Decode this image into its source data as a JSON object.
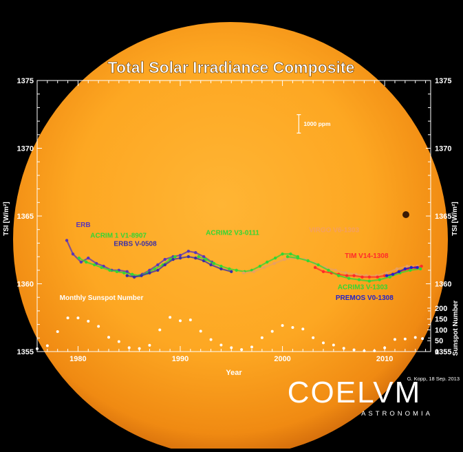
{
  "chart_data": {
    "type": "scatter",
    "title": "Total Solar Irradiance Composite",
    "xlabel": "Year",
    "ylabel_left": "TSI  [W/m²]",
    "ylabel_right": "TSI  [W/m²]",
    "ylabel_sunspot": "Sunspot Number",
    "xlim": [
      1976,
      2014.5
    ],
    "ylim": [
      1355,
      1375
    ],
    "xticks": [
      1980,
      1990,
      2000,
      2010
    ],
    "yticks": [
      1355,
      1360,
      1365,
      1370,
      1375
    ],
    "sunspot_ticks": [
      0,
      50,
      100,
      150,
      200
    ],
    "sunspot_scale_top": 200,
    "sunspot_axis_ylim": [
      1355,
      1358.2
    ],
    "scale_bar_label": "1000 ppm",
    "scale_bar_value": 1.361,
    "credit": "G. Kopp, 18 Sep. 2013",
    "grid": false,
    "series": [
      {
        "name": "ERB",
        "color": "#5a35b8",
        "x": [
          1978.9,
          1979.5,
          1980.3,
          1981.0,
          1981.8,
          1982.5,
          1983.3,
          1984.0,
          1984.8,
          1985.5,
          1986.3,
          1987.0,
          1987.8,
          1988.5,
          1989.3,
          1990.0,
          1990.8,
          1991.5,
          1992.3,
          1993.1
        ],
        "y": [
          1363.2,
          1362.2,
          1361.6,
          1361.9,
          1361.5,
          1361.3,
          1361.0,
          1361.0,
          1360.9,
          1360.5,
          1360.7,
          1361.0,
          1361.4,
          1361.8,
          1362.0,
          1362.1,
          1362.4,
          1362.3,
          1362.0,
          1361.6
        ]
      },
      {
        "name": "ACRIM 1  V1-8907",
        "color": "#33d633",
        "x": [
          1980.1,
          1980.8,
          1981.6,
          1982.3,
          1983.1,
          1983.8,
          1984.5,
          1985.3,
          1986.0,
          1986.8,
          1987.5,
          1988.3,
          1989.0,
          1989.5
        ],
        "y": [
          1361.9,
          1361.6,
          1361.4,
          1361.2,
          1361.0,
          1360.9,
          1360.8,
          1360.7,
          1360.6,
          1360.8,
          1361.1,
          1361.4,
          1361.8,
          1362.0
        ]
      },
      {
        "name": "ERBS  V-0508",
        "color": "#3a2ea8",
        "x": [
          1984.8,
          1985.5,
          1986.2,
          1987.0,
          1987.8,
          1988.5,
          1989.3,
          1990.0,
          1990.8,
          1991.5,
          1992.3,
          1993.0,
          1994.0,
          1995.0
        ],
        "y": [
          1360.6,
          1360.5,
          1360.6,
          1360.8,
          1361.0,
          1361.4,
          1361.8,
          1361.9,
          1362.0,
          1361.9,
          1361.7,
          1361.4,
          1361.1,
          1360.9
        ]
      },
      {
        "name": "ACRIM2  V3-0111",
        "color": "#33d633",
        "x": [
          1991.8,
          1992.5,
          1993.3,
          1994.0,
          1994.8,
          1995.5,
          1996.3,
          1997.0,
          1997.8,
          1998.5,
          1999.3,
          2000.0,
          2000.8,
          2001.5
        ],
        "y": [
          1362.0,
          1361.8,
          1361.5,
          1361.3,
          1361.1,
          1361.0,
          1360.9,
          1361.0,
          1361.3,
          1361.6,
          1361.9,
          1362.2,
          1362.2,
          1362.0
        ]
      },
      {
        "name": "VIRGO  V6-1303",
        "color": "#e8a060",
        "x": [
          1996.2,
          1997.2,
          1998.2,
          1999.2,
          2000.2,
          2001.2,
          2002.2,
          2003.2,
          2004.2,
          2005.2,
          2006.2,
          2007.2,
          2008.2,
          2009.2,
          2010.2,
          2011.2,
          2012.2,
          2013.2
        ],
        "y": [
          1360.8,
          1360.9,
          1361.2,
          1361.5,
          1361.8,
          1361.9,
          1361.8,
          1361.5,
          1361.2,
          1361.0,
          1360.8,
          1360.7,
          1360.6,
          1360.6,
          1360.8,
          1361.1,
          1361.3,
          1361.3
        ]
      },
      {
        "name": "TIM  V14-1308",
        "color": "#ff2a2a",
        "x": [
          2003.2,
          2004.0,
          2004.8,
          2005.5,
          2006.3,
          2007.0,
          2007.8,
          2008.5,
          2009.3,
          2010.0,
          2010.8,
          2011.5,
          2012.3,
          2013.0,
          2013.6
        ],
        "y": [
          1361.2,
          1360.9,
          1360.8,
          1360.7,
          1360.6,
          1360.6,
          1360.5,
          1360.5,
          1360.5,
          1360.6,
          1360.7,
          1360.9,
          1361.1,
          1361.2,
          1361.3
        ]
      },
      {
        "name": "ACRIM3  V-1303",
        "color": "#33d633",
        "x": [
          2000.5,
          2001.5,
          2002.5,
          2003.5,
          2004.5,
          2005.5,
          2006.5,
          2007.5,
          2008.5,
          2009.5,
          2010.5,
          2011.5,
          2012.5,
          2013.5
        ],
        "y": [
          1362.0,
          1361.9,
          1361.7,
          1361.4,
          1361.0,
          1360.6,
          1360.4,
          1360.3,
          1360.2,
          1360.3,
          1360.5,
          1360.8,
          1361.0,
          1361.1
        ]
      },
      {
        "name": "PREMOS  V0-1308",
        "color": "#2222cc",
        "x": [
          2010.2,
          2010.8,
          2011.4,
          2012.0,
          2012.6,
          2013.2
        ],
        "y": [
          1360.6,
          1360.7,
          1360.9,
          1361.1,
          1361.2,
          1361.2
        ]
      }
    ],
    "sunspot": {
      "name": "Monthly  Sunspot  Number",
      "x": [
        1976.0,
        1977.0,
        1978.0,
        1979.0,
        1980.0,
        1981.0,
        1982.0,
        1983.0,
        1984.0,
        1985.0,
        1986.0,
        1987.0,
        1988.0,
        1989.0,
        1990.0,
        1991.0,
        1992.0,
        1993.0,
        1994.0,
        1995.0,
        1996.0,
        1997.0,
        1998.0,
        1999.0,
        2000.0,
        2001.0,
        2002.0,
        2003.0,
        2004.0,
        2005.0,
        2006.0,
        2007.0,
        2008.0,
        2009.0,
        2010.0,
        2011.0,
        2012.0,
        2013.0,
        2013.7
      ],
      "y": [
        13,
        27,
        92,
        155,
        155,
        140,
        116,
        66,
        46,
        18,
        14,
        29,
        100,
        158,
        142,
        146,
        94,
        55,
        30,
        18,
        9,
        21,
        64,
        93,
        120,
        111,
        104,
        64,
        40,
        30,
        15,
        8,
        3,
        3,
        17,
        56,
        58,
        65,
        60
      ]
    },
    "labels": [
      {
        "text": "ERB",
        "color": "#5a35b8",
        "x": 1979.8,
        "y": 1364.2
      },
      {
        "text": "ACRIM 1  V1-8907",
        "color": "#33d633",
        "x": 1981.2,
        "y": 1363.4
      },
      {
        "text": "ERBS  V-0508",
        "color": "#3a2ea8",
        "x": 1983.5,
        "y": 1362.8
      },
      {
        "text": "ACRIM2  V3-0111",
        "color": "#33d633",
        "x": 1992.5,
        "y": 1363.6
      },
      {
        "text": "VIRGO  V6-1303",
        "color": "#f4a060",
        "x": 2002.6,
        "y": 1363.8
      },
      {
        "text": "TIM  V14-1308",
        "color": "#ff2a2a",
        "x": 2006.1,
        "y": 1361.9
      },
      {
        "text": "ACRIM3  V-1303",
        "color": "#33d633",
        "x": 2005.4,
        "y": 1359.6
      },
      {
        "text": "PREMOS  V0-1308",
        "color": "#2222cc",
        "x": 2005.2,
        "y": 1358.8
      },
      {
        "text": "Monthly  Sunspot  Number",
        "color": "#ffffff",
        "x": 1978.2,
        "y": 1358.8
      }
    ]
  },
  "logo": {
    "name": "COELVM",
    "sub": "ASTRONOMIA"
  }
}
